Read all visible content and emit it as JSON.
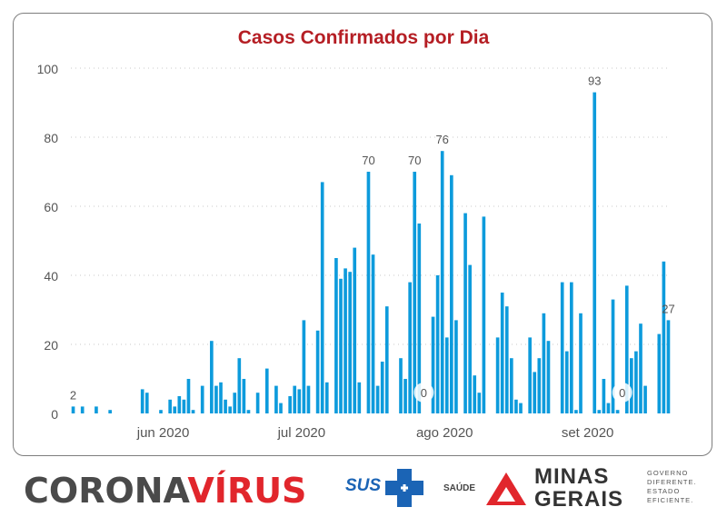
{
  "chart_data": {
    "type": "bar",
    "title": "Casos Confirmados por Dia",
    "xlabel": "",
    "ylabel": "",
    "ylim": [
      0,
      100
    ],
    "yticks": [
      0,
      20,
      40,
      60,
      80,
      100
    ],
    "grid": true,
    "color": "#0d9bdc",
    "x_range": [
      "2020-05-13",
      "2020-09-19"
    ],
    "x_tick_labels": [
      {
        "label": "jun 2020",
        "date": "2020-06-01"
      },
      {
        "label": "jul 2020",
        "date": "2020-07-01"
      },
      {
        "label": "ago 2020",
        "date": "2020-08-01"
      },
      {
        "label": "set 2020",
        "date": "2020-09-01"
      }
    ],
    "series": [
      {
        "name": "",
        "points": [
          [
            "2020-05-13",
            2
          ],
          [
            "2020-05-14",
            0
          ],
          [
            "2020-05-15",
            2
          ],
          [
            "2020-05-16",
            0
          ],
          [
            "2020-05-17",
            0
          ],
          [
            "2020-05-18",
            2
          ],
          [
            "2020-05-19",
            0
          ],
          [
            "2020-05-20",
            0
          ],
          [
            "2020-05-21",
            1
          ],
          [
            "2020-05-22",
            0
          ],
          [
            "2020-05-23",
            0
          ],
          [
            "2020-05-24",
            0
          ],
          [
            "2020-05-25",
            0
          ],
          [
            "2020-05-26",
            0
          ],
          [
            "2020-05-27",
            0
          ],
          [
            "2020-05-28",
            7
          ],
          [
            "2020-05-29",
            6
          ],
          [
            "2020-05-30",
            0
          ],
          [
            "2020-05-31",
            0
          ],
          [
            "2020-06-01",
            1
          ],
          [
            "2020-06-02",
            0
          ],
          [
            "2020-06-03",
            4
          ],
          [
            "2020-06-04",
            2
          ],
          [
            "2020-06-05",
            5
          ],
          [
            "2020-06-06",
            4
          ],
          [
            "2020-06-07",
            10
          ],
          [
            "2020-06-08",
            1
          ],
          [
            "2020-06-09",
            0
          ],
          [
            "2020-06-10",
            8
          ],
          [
            "2020-06-11",
            0
          ],
          [
            "2020-06-12",
            21
          ],
          [
            "2020-06-13",
            8
          ],
          [
            "2020-06-14",
            9
          ],
          [
            "2020-06-15",
            4
          ],
          [
            "2020-06-16",
            2
          ],
          [
            "2020-06-17",
            6
          ],
          [
            "2020-06-18",
            16
          ],
          [
            "2020-06-19",
            10
          ],
          [
            "2020-06-20",
            1
          ],
          [
            "2020-06-21",
            0
          ],
          [
            "2020-06-22",
            6
          ],
          [
            "2020-06-23",
            0
          ],
          [
            "2020-06-24",
            13
          ],
          [
            "2020-06-25",
            0
          ],
          [
            "2020-06-26",
            8
          ],
          [
            "2020-06-27",
            3
          ],
          [
            "2020-06-28",
            0
          ],
          [
            "2020-06-29",
            5
          ],
          [
            "2020-06-30",
            8
          ],
          [
            "2020-07-01",
            7
          ],
          [
            "2020-07-02",
            27
          ],
          [
            "2020-07-03",
            8
          ],
          [
            "2020-07-04",
            0
          ],
          [
            "2020-07-05",
            24
          ],
          [
            "2020-07-06",
            67
          ],
          [
            "2020-07-07",
            9
          ],
          [
            "2020-07-08",
            0
          ],
          [
            "2020-07-09",
            45
          ],
          [
            "2020-07-10",
            39
          ],
          [
            "2020-07-11",
            42
          ],
          [
            "2020-07-12",
            41
          ],
          [
            "2020-07-13",
            48
          ],
          [
            "2020-07-14",
            9
          ],
          [
            "2020-07-15",
            0
          ],
          [
            "2020-07-16",
            70
          ],
          [
            "2020-07-17",
            46
          ],
          [
            "2020-07-18",
            8
          ],
          [
            "2020-07-19",
            15
          ],
          [
            "2020-07-20",
            31
          ],
          [
            "2020-07-21",
            0
          ],
          [
            "2020-07-22",
            0
          ],
          [
            "2020-07-23",
            16
          ],
          [
            "2020-07-24",
            10
          ],
          [
            "2020-07-25",
            38
          ],
          [
            "2020-07-26",
            70
          ],
          [
            "2020-07-27",
            55
          ],
          [
            "2020-07-28",
            0
          ],
          [
            "2020-07-29",
            0
          ],
          [
            "2020-07-30",
            28
          ],
          [
            "2020-07-31",
            40
          ],
          [
            "2020-08-01",
            76
          ],
          [
            "2020-08-02",
            22
          ],
          [
            "2020-08-03",
            69
          ],
          [
            "2020-08-04",
            27
          ],
          [
            "2020-08-05",
            0
          ],
          [
            "2020-08-06",
            58
          ],
          [
            "2020-08-07",
            43
          ],
          [
            "2020-08-08",
            11
          ],
          [
            "2020-08-09",
            6
          ],
          [
            "2020-08-10",
            57
          ],
          [
            "2020-08-11",
            0
          ],
          [
            "2020-08-12",
            0
          ],
          [
            "2020-08-13",
            22
          ],
          [
            "2020-08-14",
            35
          ],
          [
            "2020-08-15",
            31
          ],
          [
            "2020-08-16",
            16
          ],
          [
            "2020-08-17",
            4
          ],
          [
            "2020-08-18",
            3
          ],
          [
            "2020-08-19",
            0
          ],
          [
            "2020-08-20",
            22
          ],
          [
            "2020-08-21",
            12
          ],
          [
            "2020-08-22",
            16
          ],
          [
            "2020-08-23",
            29
          ],
          [
            "2020-08-24",
            21
          ],
          [
            "2020-08-25",
            0
          ],
          [
            "2020-08-26",
            0
          ],
          [
            "2020-08-27",
            38
          ],
          [
            "2020-08-28",
            18
          ],
          [
            "2020-08-29",
            38
          ],
          [
            "2020-08-30",
            1
          ],
          [
            "2020-08-31",
            29
          ],
          [
            "2020-09-01",
            0
          ],
          [
            "2020-09-02",
            0
          ],
          [
            "2020-09-03",
            93
          ],
          [
            "2020-09-04",
            1
          ],
          [
            "2020-09-05",
            10
          ],
          [
            "2020-09-06",
            3
          ],
          [
            "2020-09-07",
            33
          ],
          [
            "2020-09-08",
            1
          ],
          [
            "2020-09-09",
            0
          ],
          [
            "2020-09-10",
            37
          ],
          [
            "2020-09-11",
            16
          ],
          [
            "2020-09-12",
            18
          ],
          [
            "2020-09-13",
            26
          ],
          [
            "2020-09-14",
            8
          ],
          [
            "2020-09-15",
            0
          ],
          [
            "2020-09-16",
            0
          ],
          [
            "2020-09-17",
            23
          ],
          [
            "2020-09-18",
            44
          ],
          [
            "2020-09-19",
            27
          ]
        ]
      }
    ],
    "data_labels": [
      {
        "date": "2020-05-13",
        "text": "2"
      },
      {
        "date": "2020-07-16",
        "text": "70"
      },
      {
        "date": "2020-07-26",
        "text": "70"
      },
      {
        "date": "2020-07-28",
        "text": "0"
      },
      {
        "date": "2020-08-01",
        "text": "76"
      },
      {
        "date": "2020-09-03",
        "text": "93"
      },
      {
        "date": "2020-09-09",
        "text": "0"
      },
      {
        "date": "2020-09-19",
        "text": "27"
      }
    ]
  },
  "footer": {
    "brand_part1": "CORONA",
    "brand_part2": "VÍRUS",
    "sus": "SUS",
    "saude": "SAÚDE",
    "mg_line1": "MINAS",
    "mg_line2": "GERAIS",
    "gov_line1": "GOVERNO",
    "gov_line2": "DIFERENTE.",
    "gov_line3": "ESTADO",
    "gov_line4": "EFICIENTE.",
    "colors": {
      "brand_dark": "#4a4a4a",
      "brand_red": "#e1262c",
      "sus_blue": "#1b64b5",
      "mg_red": "#e1262c"
    }
  }
}
